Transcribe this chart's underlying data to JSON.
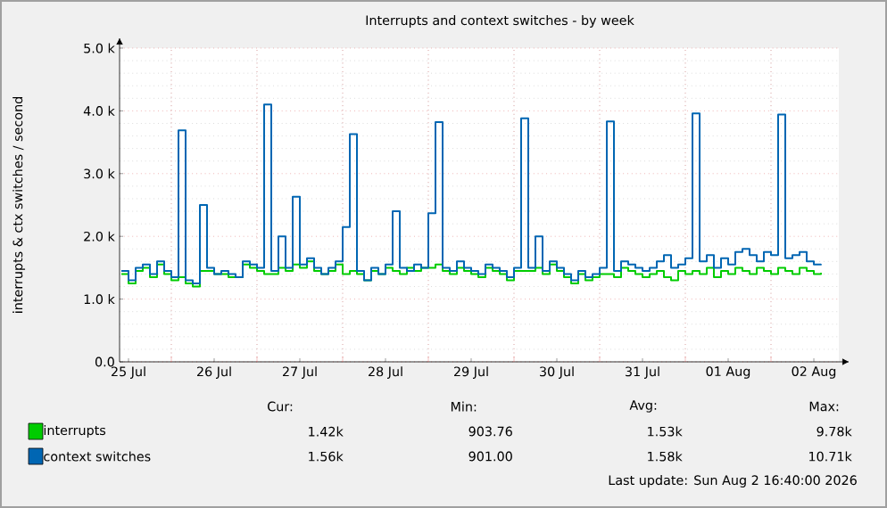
{
  "chart_data": {
    "type": "step",
    "title": "Interrupts and context switches - by week",
    "ylabel": "interrupts & ctx switches / second",
    "x": [
      "2026-07-25T10:00",
      "2026-07-25T12:00",
      "2026-07-25T14:00",
      "2026-07-25T16:00",
      "2026-07-25T18:00",
      "2026-07-25T20:00",
      "2026-07-25T22:00",
      "2026-07-26T00:00",
      "2026-07-26T02:00",
      "2026-07-26T04:00",
      "2026-07-26T06:00",
      "2026-07-26T08:00",
      "2026-07-26T10:00",
      "2026-07-26T12:00",
      "2026-07-26T14:00",
      "2026-07-26T16:00",
      "2026-07-26T18:00",
      "2026-07-26T20:00",
      "2026-07-26T22:00",
      "2026-07-27T00:00",
      "2026-07-27T02:00",
      "2026-07-27T04:00",
      "2026-07-27T06:00",
      "2026-07-27T08:00",
      "2026-07-27T10:00",
      "2026-07-27T12:00",
      "2026-07-27T14:00",
      "2026-07-27T16:00",
      "2026-07-27T18:00",
      "2026-07-27T20:00",
      "2026-07-27T22:00",
      "2026-07-28T00:00",
      "2026-07-28T02:00",
      "2026-07-28T04:00",
      "2026-07-28T06:00",
      "2026-07-28T08:00",
      "2026-07-28T10:00",
      "2026-07-28T12:00",
      "2026-07-28T14:00",
      "2026-07-28T16:00",
      "2026-07-28T18:00",
      "2026-07-28T20:00",
      "2026-07-28T22:00",
      "2026-07-29T00:00",
      "2026-07-29T02:00",
      "2026-07-29T04:00",
      "2026-07-29T06:00",
      "2026-07-29T08:00",
      "2026-07-29T10:00",
      "2026-07-29T12:00",
      "2026-07-29T14:00",
      "2026-07-29T16:00",
      "2026-07-29T18:00",
      "2026-07-29T20:00",
      "2026-07-29T22:00",
      "2026-07-30T00:00",
      "2026-07-30T02:00",
      "2026-07-30T04:00",
      "2026-07-30T06:00",
      "2026-07-30T08:00",
      "2026-07-30T10:00",
      "2026-07-30T12:00",
      "2026-07-30T14:00",
      "2026-07-30T16:00",
      "2026-07-30T18:00",
      "2026-07-30T20:00",
      "2026-07-30T22:00",
      "2026-07-31T00:00",
      "2026-07-31T02:00",
      "2026-07-31T04:00",
      "2026-07-31T06:00",
      "2026-07-31T08:00",
      "2026-07-31T10:00",
      "2026-07-31T12:00",
      "2026-07-31T14:00",
      "2026-07-31T16:00",
      "2026-07-31T18:00",
      "2026-07-31T20:00",
      "2026-07-31T22:00",
      "2026-08-01T00:00",
      "2026-08-01T02:00",
      "2026-08-01T04:00",
      "2026-08-01T06:00",
      "2026-08-01T08:00",
      "2026-08-01T10:00",
      "2026-08-01T12:00",
      "2026-08-01T14:00",
      "2026-08-01T16:00",
      "2026-08-01T18:00",
      "2026-08-01T20:00",
      "2026-08-01T22:00",
      "2026-08-02T00:00",
      "2026-08-02T02:00",
      "2026-08-02T04:00",
      "2026-08-02T06:00",
      "2026-08-02T08:00",
      "2026-08-02T10:00",
      "2026-08-02T12:00",
      "2026-08-02T14:00"
    ],
    "series": [
      {
        "name": "interrupts",
        "color": "#00cc00",
        "values": [
          1400,
          1250,
          1450,
          1500,
          1350,
          1550,
          1400,
          1300,
          1350,
          1250,
          1200,
          1450,
          1450,
          1400,
          1400,
          1350,
          1350,
          1550,
          1500,
          1450,
          1400,
          1400,
          1500,
          1450,
          1550,
          1500,
          1600,
          1450,
          1400,
          1450,
          1550,
          1400,
          1450,
          1400,
          1300,
          1450,
          1400,
          1500,
          1450,
          1400,
          1500,
          1450,
          1500,
          1500,
          1550,
          1450,
          1400,
          1500,
          1450,
          1400,
          1350,
          1500,
          1450,
          1400,
          1300,
          1450,
          1450,
          1450,
          1500,
          1400,
          1550,
          1450,
          1350,
          1250,
          1400,
          1300,
          1350,
          1400,
          1400,
          1350,
          1500,
          1450,
          1400,
          1350,
          1400,
          1450,
          1350,
          1300,
          1450,
          1400,
          1450,
          1400,
          1500,
          1350,
          1450,
          1400,
          1500,
          1450,
          1400,
          1500,
          1450,
          1400,
          1500,
          1450,
          1400,
          1500,
          1450,
          1400,
          1420
        ]
      },
      {
        "name": "context switches",
        "color": "#0066b3",
        "values": [
          1450,
          1300,
          1500,
          1550,
          1400,
          1600,
          1450,
          1350,
          3690,
          1300,
          1250,
          2500,
          1500,
          1400,
          1450,
          1400,
          1350,
          1600,
          1550,
          1500,
          4100,
          1450,
          2000,
          1500,
          2630,
          1550,
          1650,
          1500,
          1400,
          1500,
          1600,
          2150,
          3630,
          1450,
          1300,
          1500,
          1400,
          1550,
          2400,
          1500,
          1450,
          1550,
          1500,
          2370,
          3820,
          1500,
          1450,
          1600,
          1500,
          1450,
          1400,
          1550,
          1500,
          1450,
          1350,
          1500,
          3880,
          1500,
          2000,
          1450,
          1600,
          1500,
          1400,
          1300,
          1450,
          1350,
          1400,
          1500,
          3830,
          1450,
          1600,
          1550,
          1500,
          1450,
          1500,
          1600,
          1700,
          1500,
          1550,
          1650,
          3960,
          1600,
          1700,
          1500,
          1650,
          1550,
          1750,
          1800,
          1700,
          1600,
          1750,
          1700,
          3940,
          1650,
          1700,
          1750,
          1600,
          1550,
          1560
        ]
      }
    ],
    "xlim": [
      "2026-07-25T09:30",
      "2026-08-02T19:00"
    ],
    "xticks": [
      {
        "value": "2026-07-25T12:00",
        "label": "25 Jul"
      },
      {
        "value": "2026-07-26T00:00",
        "label": null
      },
      {
        "value": "2026-07-26T12:00",
        "label": "26 Jul"
      },
      {
        "value": "2026-07-27T00:00",
        "label": null
      },
      {
        "value": "2026-07-27T12:00",
        "label": "27 Jul"
      },
      {
        "value": "2026-07-28T00:00",
        "label": null
      },
      {
        "value": "2026-07-28T12:00",
        "label": "28 Jul"
      },
      {
        "value": "2026-07-29T00:00",
        "label": null
      },
      {
        "value": "2026-07-29T12:00",
        "label": "29 Jul"
      },
      {
        "value": "2026-07-30T00:00",
        "label": null
      },
      {
        "value": "2026-07-30T12:00",
        "label": "30 Jul"
      },
      {
        "value": "2026-07-31T00:00",
        "label": null
      },
      {
        "value": "2026-07-31T12:00",
        "label": "31 Jul"
      },
      {
        "value": "2026-08-01T00:00",
        "label": null
      },
      {
        "value": "2026-08-01T12:00",
        "label": "01 Aug"
      },
      {
        "value": "2026-08-02T00:00",
        "label": null
      },
      {
        "value": "2026-08-02T12:00",
        "label": "02 Aug"
      }
    ],
    "ylim": [
      0,
      5000
    ],
    "yticks": [
      {
        "value": 0,
        "label": "0.0"
      },
      {
        "value": 1000,
        "label": "1.0 k"
      },
      {
        "value": 2000,
        "label": "2.0 k"
      },
      {
        "value": 3000,
        "label": "3.0 k"
      },
      {
        "value": 4000,
        "label": "4.0 k"
      },
      {
        "value": 5000,
        "label": "5.0 k"
      }
    ],
    "grid": true,
    "legend": "bottom",
    "annotations": [
      "Cur:",
      "Min:",
      "Avg:",
      "Max:",
      "1.42k",
      "903.76",
      "1.53k",
      "9.78k",
      "1.56k",
      "901.00",
      "1.58k",
      "10.71k",
      "Last update: Sun Aug  2 16:40:00 2026"
    ]
  }
}
